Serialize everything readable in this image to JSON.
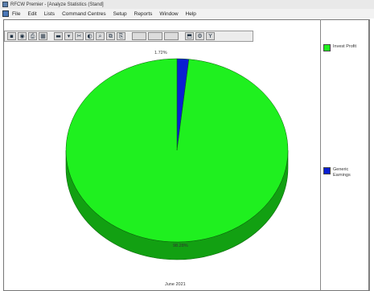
{
  "window": {
    "title": "RFCW Premier - [Analyze Statistics (Stand]"
  },
  "menu": {
    "items": [
      "File",
      "Edit",
      "Lists",
      "Command Centres",
      "Setup",
      "Reports",
      "Window",
      "Help"
    ]
  },
  "toolbar": {
    "buttons": [
      {
        "name": "save-icon",
        "glyph": "▪"
      },
      {
        "name": "preview-icon",
        "glyph": "◉"
      },
      {
        "name": "print-icon",
        "glyph": "⎙"
      },
      {
        "name": "image-icon",
        "glyph": "▦"
      },
      {
        "name": "chart-type-icon",
        "glyph": "▬"
      },
      {
        "name": "dropdown-icon",
        "glyph": "▾"
      },
      {
        "name": "cut-icon",
        "glyph": "✂"
      },
      {
        "name": "palette-icon",
        "glyph": "◐"
      },
      {
        "name": "zoom-icon",
        "glyph": "⌕"
      },
      {
        "name": "copy-icon",
        "glyph": "⧉"
      },
      {
        "name": "export-icon",
        "glyph": "⎘"
      },
      {
        "name": "blank-1-icon",
        "glyph": ""
      },
      {
        "name": "blank-2-icon",
        "glyph": ""
      },
      {
        "name": "blank-3-icon",
        "glyph": ""
      },
      {
        "name": "3d-icon",
        "glyph": "⬒"
      },
      {
        "name": "settings-icon",
        "glyph": "⚙"
      },
      {
        "name": "filter-icon",
        "glyph": "Y"
      }
    ]
  },
  "chart_data": {
    "type": "pie",
    "categories": [
      "Invest Profit",
      "Generic Earnings"
    ],
    "values": [
      98.28,
      1.72
    ],
    "data_labels": [
      "98.28%",
      "1.72%"
    ],
    "colors": [
      "#1ff01f",
      "#0a1fd2"
    ],
    "side_colors": [
      "#12a012",
      "#061080"
    ],
    "footer": "June 2021",
    "legend_position": "right"
  },
  "legend": {
    "items": [
      {
        "label": "Invest Profit",
        "color": "#1ff01f"
      },
      {
        "label": "Generic Earnings",
        "color": "#0a1fd2"
      }
    ]
  }
}
